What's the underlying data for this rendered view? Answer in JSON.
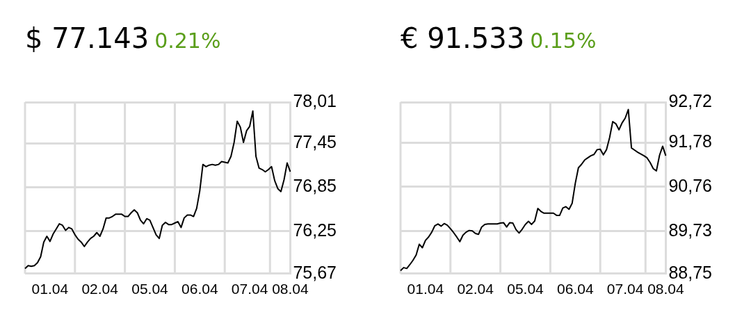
{
  "chart_data": [
    {
      "type": "line",
      "title": "$ 77.143",
      "subtitle": "0.21%",
      "legend": false,
      "grid": true,
      "categories": [
        null,
        null,
        null,
        null,
        null,
        null,
        null,
        null,
        "01.04",
        null,
        null,
        null,
        null,
        null,
        null,
        null,
        null,
        null,
        null,
        null,
        null,
        null,
        null,
        null,
        "02.04",
        null,
        null,
        null,
        null,
        null,
        null,
        null,
        null,
        null,
        null,
        null,
        null,
        null,
        null,
        null,
        "05.04",
        null,
        null,
        null,
        null,
        null,
        null,
        null,
        null,
        null,
        null,
        null,
        null,
        null,
        null,
        null,
        "06.04",
        null,
        null,
        null,
        null,
        null,
        null,
        null,
        null,
        null,
        null,
        null,
        null,
        null,
        null,
        null,
        "07.04",
        null,
        null,
        null,
        null,
        null,
        null,
        null,
        null,
        null,
        null,
        null,
        null,
        "08.04"
      ],
      "ylim": [
        75.67,
        78.01
      ],
      "yticks": [
        {
          "value": 75.67,
          "label": "75,67"
        },
        {
          "value": 76.25,
          "label": "76,25"
        },
        {
          "value": 76.85,
          "label": "76,85"
        },
        {
          "value": 77.45,
          "label": "77,45"
        },
        {
          "value": 78.01,
          "label": "78,01"
        }
      ],
      "series": [
        {
          "color": "#000000",
          "values": [
            75.74,
            75.78,
            75.77,
            75.78,
            75.82,
            75.9,
            76.1,
            76.18,
            76.11,
            76.21,
            76.28,
            76.35,
            76.33,
            76.26,
            76.3,
            76.28,
            76.2,
            76.14,
            76.1,
            76.04,
            76.1,
            76.15,
            76.18,
            76.23,
            76.18,
            76.28,
            76.43,
            76.43,
            76.45,
            76.48,
            76.48,
            76.48,
            76.45,
            76.45,
            76.5,
            76.54,
            76.5,
            76.4,
            76.35,
            76.42,
            76.4,
            76.3,
            76.2,
            76.15,
            76.33,
            76.37,
            76.34,
            76.34,
            76.36,
            76.38,
            76.3,
            76.43,
            76.47,
            76.47,
            76.45,
            76.56,
            76.8,
            77.16,
            77.13,
            77.15,
            77.16,
            77.15,
            77.16,
            77.2,
            77.19,
            77.18,
            77.27,
            77.46,
            77.75,
            77.67,
            77.46,
            77.62,
            77.68,
            77.89,
            77.27,
            77.11,
            77.09,
            77.06,
            77.09,
            77.13,
            76.94,
            76.83,
            76.79,
            76.95,
            77.18,
            77.06
          ]
        }
      ]
    },
    {
      "type": "line",
      "title": "€ 91.533",
      "subtitle": "0.15%",
      "legend": false,
      "grid": true,
      "categories": [
        null,
        null,
        null,
        null,
        null,
        null,
        null,
        null,
        "01.04",
        null,
        null,
        null,
        null,
        null,
        null,
        null,
        null,
        null,
        null,
        null,
        null,
        null,
        null,
        null,
        "02.04",
        null,
        null,
        null,
        null,
        null,
        null,
        null,
        null,
        null,
        null,
        null,
        null,
        null,
        null,
        null,
        "05.04",
        null,
        null,
        null,
        null,
        null,
        null,
        null,
        null,
        null,
        null,
        null,
        null,
        null,
        null,
        null,
        "06.04",
        null,
        null,
        null,
        null,
        null,
        null,
        null,
        null,
        null,
        null,
        null,
        null,
        null,
        null,
        null,
        "07.04",
        null,
        null,
        null,
        null,
        null,
        null,
        null,
        null,
        null,
        null,
        null,
        null,
        "08.04"
      ],
      "ylim": [
        88.75,
        92.72
      ],
      "yticks": [
        {
          "value": 88.75,
          "label": "88,75"
        },
        {
          "value": 89.73,
          "label": "89,73"
        },
        {
          "value": 90.76,
          "label": "90,76"
        },
        {
          "value": 91.78,
          "label": "91,78"
        },
        {
          "value": 92.72,
          "label": "92,72"
        }
      ],
      "series": [
        {
          "color": "#000000",
          "values": [
            88.82,
            88.89,
            88.87,
            88.96,
            89.06,
            89.18,
            89.43,
            89.35,
            89.52,
            89.6,
            89.71,
            89.86,
            89.9,
            89.85,
            89.91,
            89.87,
            89.79,
            89.7,
            89.6,
            89.49,
            89.64,
            89.71,
            89.75,
            89.74,
            89.68,
            89.66,
            89.83,
            89.89,
            89.9,
            89.9,
            89.9,
            89.9,
            89.92,
            89.93,
            89.83,
            89.93,
            89.92,
            89.77,
            89.69,
            89.78,
            89.89,
            89.96,
            89.89,
            89.97,
            90.26,
            90.19,
            90.15,
            90.15,
            90.15,
            90.15,
            90.1,
            90.1,
            90.27,
            90.3,
            90.24,
            90.38,
            90.84,
            91.2,
            91.28,
            91.38,
            91.43,
            91.48,
            91.51,
            91.62,
            91.63,
            91.5,
            91.62,
            91.9,
            92.27,
            92.22,
            92.08,
            92.24,
            92.35,
            92.55,
            91.66,
            91.61,
            91.56,
            91.52,
            91.48,
            91.43,
            91.32,
            91.18,
            91.13,
            91.49,
            91.7,
            91.48
          ]
        }
      ]
    }
  ]
}
